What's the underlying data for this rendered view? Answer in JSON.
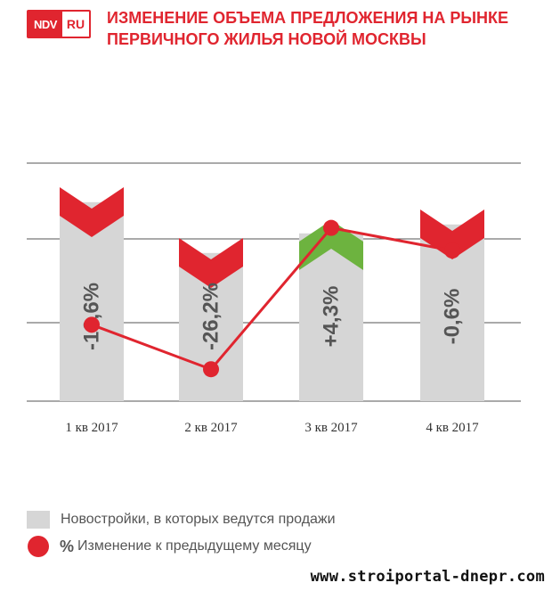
{
  "logo": {
    "ndv": "NDV",
    "ru": "RU"
  },
  "title": {
    "line1": "ИЗМЕНЕНИЕ ОБЪЕМА ПРЕДЛОЖЕНИЯ НА РЫНКЕ",
    "line2": "ПЕРВИЧНОГО ЖИЛЬЯ НОВОЙ МОСКВЫ"
  },
  "colors": {
    "bar": "#d6d6d6",
    "line": "#e0252f",
    "decrease": "#e0252f",
    "increase": "#6db33f",
    "grid": "#555555",
    "text": "#555555"
  },
  "chart_data": {
    "type": "bar",
    "categories": [
      "1 кв 2017",
      "2 кв 2017",
      "3 кв 2017",
      "4 кв 2017"
    ],
    "series": [
      {
        "name": "Новостройки, в которых ведутся продажи",
        "type": "bar",
        "values": [
          240,
          183,
          205,
          215
        ],
        "labels": [
          "-16,6%",
          "-26,2%",
          "+4,3%",
          "-0,6%"
        ],
        "direction": [
          "down",
          "down",
          "up",
          "down"
        ]
      },
      {
        "name": "% Изменение к предыдущему месяцу",
        "type": "line",
        "values": [
          -16.6,
          -26.2,
          4.3,
          -0.6
        ]
      }
    ],
    "grid": true,
    "legend": "bottom-left"
  },
  "legend": {
    "bar_label": "Новостройки, в которых ведутся продажи",
    "pct_symbol": "%",
    "line_label": "Изменение к предыдущему месяцу"
  },
  "watermark": "www.stroiportal-dnepr.com"
}
